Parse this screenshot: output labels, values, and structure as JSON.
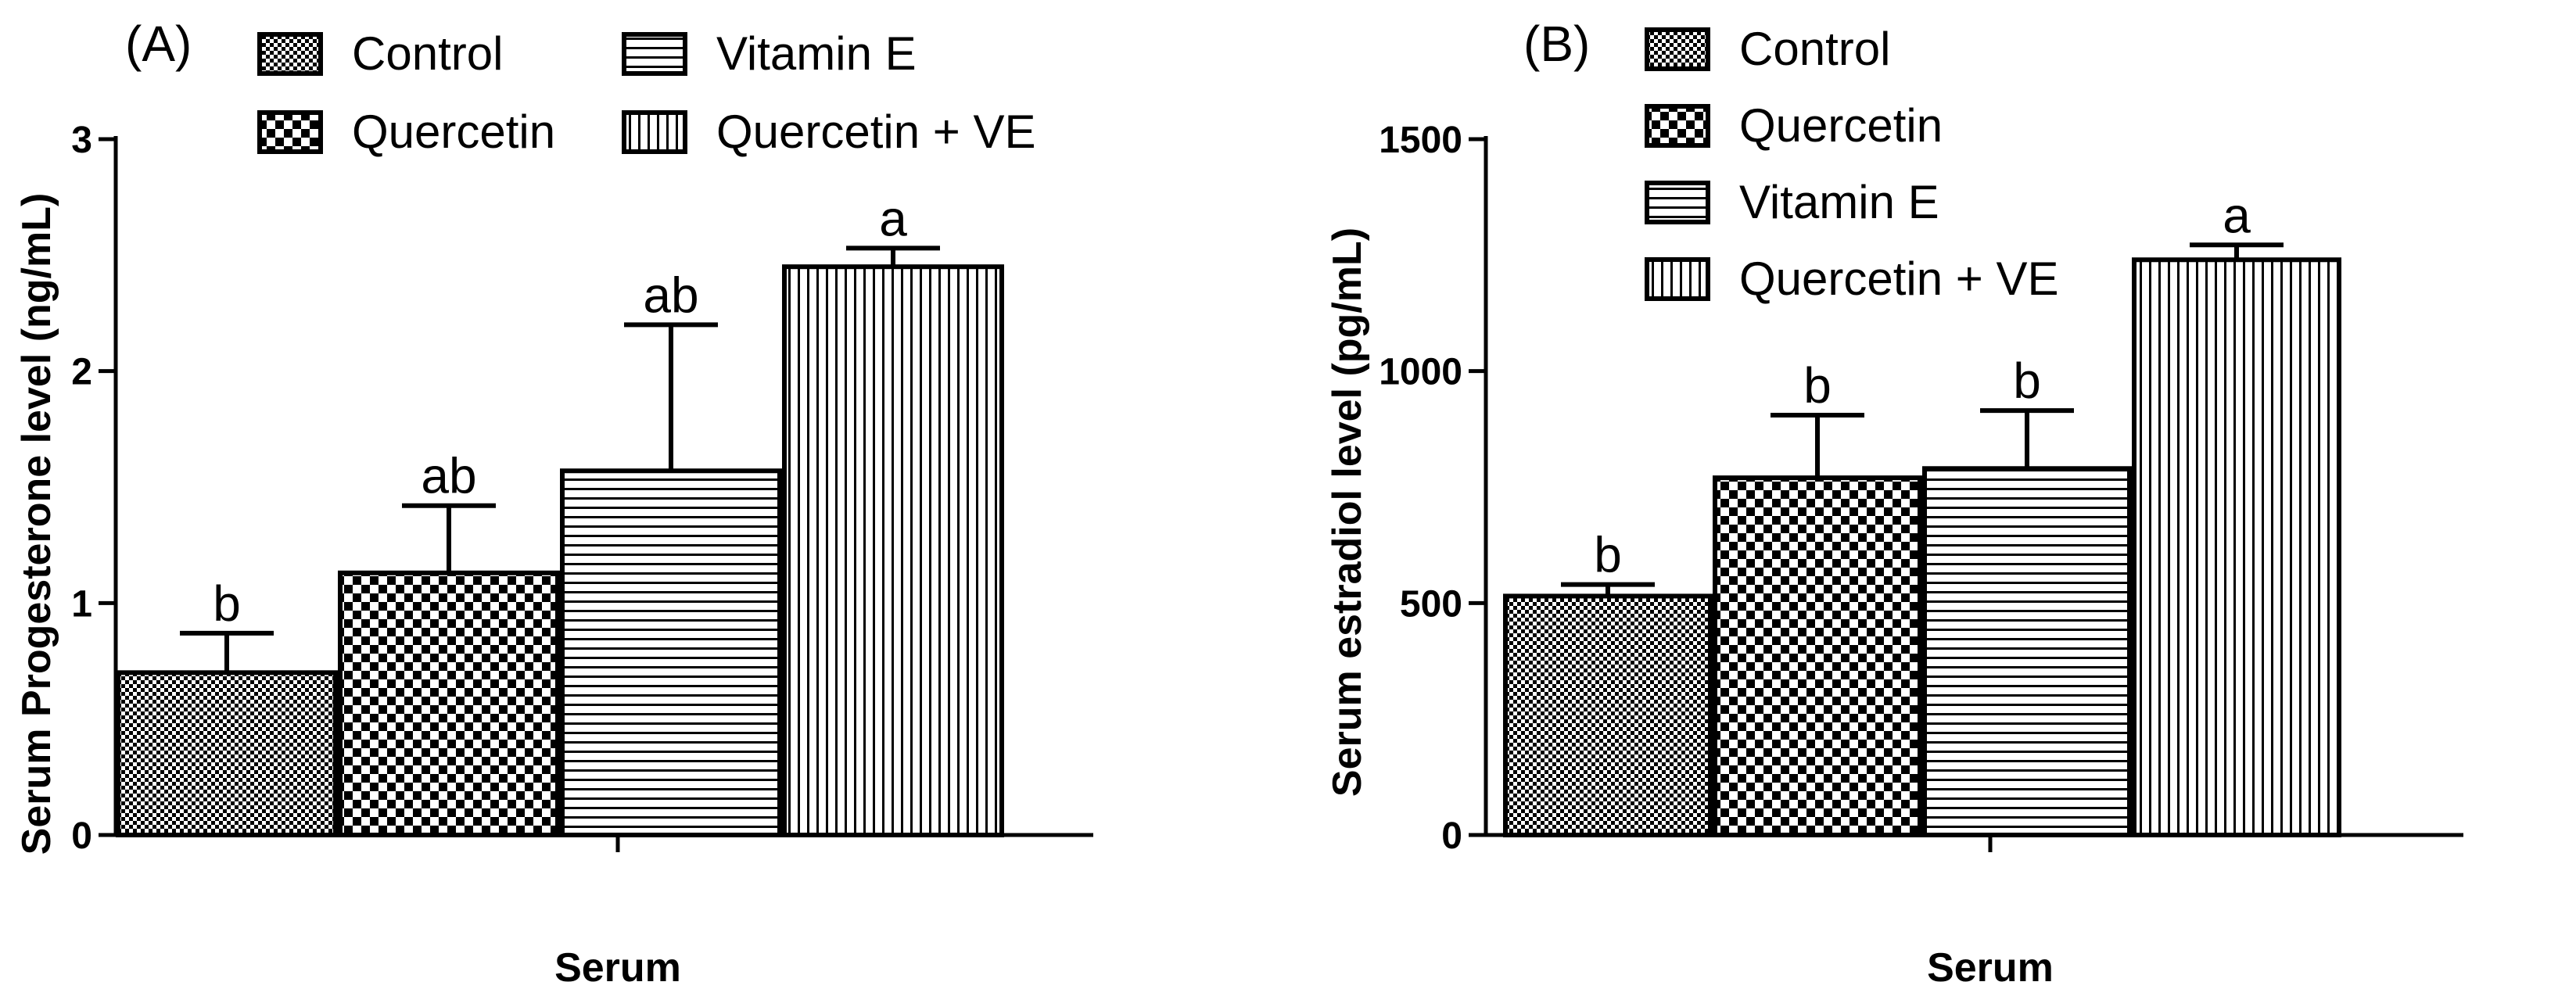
{
  "chart_data": [
    {
      "type": "bar",
      "panel_label": "(A)",
      "categories": [
        "Control",
        "Quercetin",
        "Vitamin E",
        "Quercetin + VE"
      ],
      "values": [
        0.7,
        1.13,
        1.57,
        2.45
      ],
      "error": [
        0.17,
        0.29,
        0.63,
        0.08
      ],
      "significance": [
        "b",
        "ab",
        "ab",
        "a"
      ],
      "patterns": [
        "fine-check",
        "checker",
        "horizontal",
        "vertical"
      ],
      "xlabel": "Serum",
      "ylabel": "Serum Progesterone level (ng/mL)",
      "ylim": [
        0,
        3
      ],
      "yticks": [
        "0",
        "1",
        "2",
        "3"
      ],
      "legend": [
        "Control",
        "Quercetin",
        "Vitamin E",
        "Quercetin + VE"
      ],
      "legend_layout": "two-column, top",
      "grid": false
    },
    {
      "type": "bar",
      "panel_label": "(B)",
      "categories": [
        "Control",
        "Quercetin",
        "Vitamin E",
        "Quercetin + VE"
      ],
      "values": [
        515,
        770,
        790,
        1240
      ],
      "error": [
        25,
        135,
        125,
        32
      ],
      "significance": [
        "b",
        "b",
        "b",
        "a"
      ],
      "patterns": [
        "fine-check",
        "checker",
        "horizontal",
        "vertical"
      ],
      "xlabel": "Serum",
      "ylabel": "Serum estradiol level (pg/mL)",
      "ylim": [
        0,
        1500
      ],
      "yticks": [
        "0",
        "500",
        "1000",
        "1500"
      ],
      "legend": [
        "Control",
        "Quercetin",
        "Vitamin E",
        "Quercetin + VE"
      ],
      "legend_layout": "single-column, top",
      "grid": false
    }
  ],
  "colors": {
    "ink": "#000000",
    "fill": "#ffffff"
  }
}
